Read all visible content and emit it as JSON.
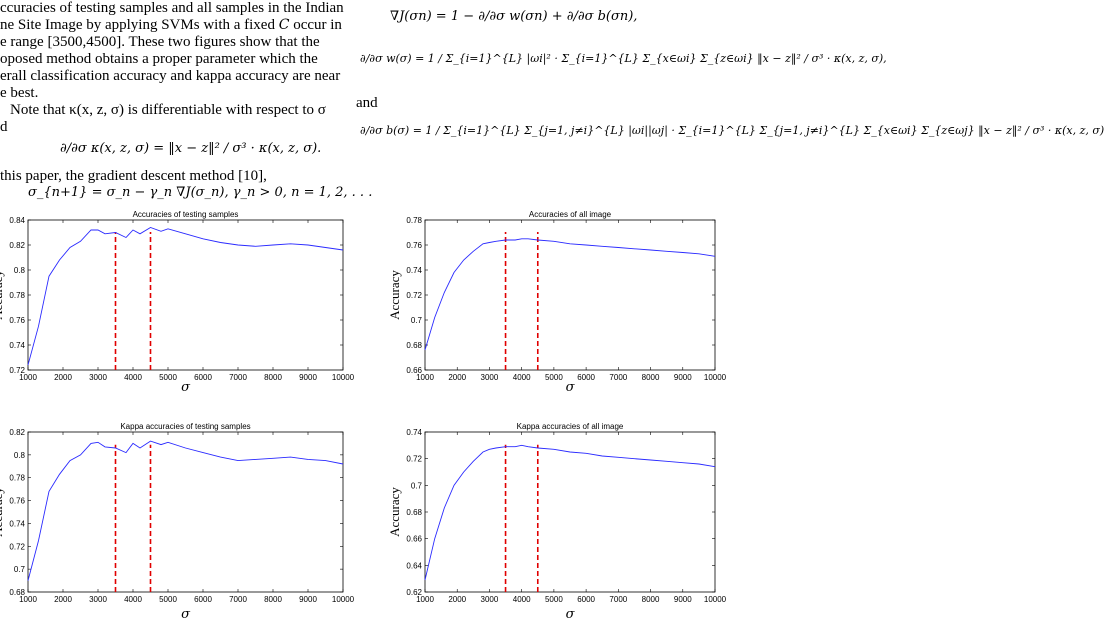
{
  "text": {
    "left_line1": "ccuracies of testing samples and all samples in the Indian",
    "left_line2_pre": "ne Site Image by applying SVMs with a fixed",
    "left_line2_sym": "C",
    "left_line2_post": "occur in",
    "left_line3": "e range [3500,4500]. These two figures show that the",
    "left_line4": "oposed method obtains a proper parameter which the",
    "left_line5": "erall classification accuracy and kappa accuracy are near",
    "left_line6": "e best.",
    "left_line7": "Note that κ(x, z, σ) is differentiable with respect to σ",
    "left_line8": "d",
    "left_eq1": "∂/∂σ κ(x, z, σ) = ‖x − z‖² / σ³ · κ(x, z, σ).",
    "left_line9": "this paper, the gradient descent method [10],",
    "left_eq2": "σ_{n+1} = σ_n − γ_n ∇J(σ_n), γ_n > 0, n = 1, 2, . . .",
    "right_eq1": "∇J(σn) = 1 − ∂/∂σ w(σn) + ∂/∂σ b(σn),",
    "right_eq2": "∂/∂σ w(σ) = 1 / Σ_{i=1}^{L} |ωi|² · Σ_{i=1}^{L} Σ_{x∈ωi} Σ_{z∈ωi} ‖x − z‖² / σ³ · κ(x, z, σ),",
    "right_and": "and",
    "right_eq3": "∂/∂σ b(σ) = 1 / Σ_{i=1}^{L} Σ_{j=1, j≠i}^{L} |ωi||ωj| · Σ_{i=1}^{L} Σ_{j=1, j≠i}^{L} Σ_{x∈ωi} Σ_{z∈ωj} ‖x − z‖² / σ³ · κ(x, z, σ)"
  },
  "chart_data": [
    {
      "type": "line",
      "title": "Accuracies of testing samples",
      "xlabel": "σ",
      "ylabel": "Accuracy",
      "xlim": [
        1000,
        10000
      ],
      "ylim": [
        0.72,
        0.84
      ],
      "xticks": [
        1000,
        2000,
        3000,
        4000,
        5000,
        6000,
        7000,
        8000,
        9000,
        10000
      ],
      "yticks": [
        0.72,
        0.74,
        0.76,
        0.78,
        0.8,
        0.82,
        0.84
      ],
      "ytick_labels": [
        "0.72",
        "0.74",
        "0.76",
        "0.78",
        "0.8",
        "0.82",
        "0.84"
      ],
      "series_color": "#2a2aff",
      "marker_color": "#e00000",
      "markers": [
        3500,
        4500
      ],
      "x": [
        1000,
        1300,
        1600,
        1900,
        2200,
        2500,
        2800,
        3000,
        3200,
        3500,
        3800,
        4000,
        4200,
        4500,
        4800,
        5000,
        5500,
        6000,
        6500,
        7000,
        7500,
        8000,
        8500,
        9000,
        9500,
        10000
      ],
      "y": [
        0.724,
        0.755,
        0.795,
        0.808,
        0.818,
        0.823,
        0.832,
        0.832,
        0.829,
        0.83,
        0.826,
        0.832,
        0.829,
        0.834,
        0.831,
        0.833,
        0.829,
        0.825,
        0.822,
        0.82,
        0.819,
        0.82,
        0.821,
        0.82,
        0.818,
        0.816
      ]
    },
    {
      "type": "line",
      "title": "Accuracies of all image",
      "xlabel": "σ",
      "ylabel": "Accuracy",
      "xlim": [
        1000,
        10000
      ],
      "ylim": [
        0.66,
        0.78
      ],
      "xticks": [
        1000,
        2000,
        3000,
        4000,
        5000,
        6000,
        7000,
        8000,
        9000,
        10000
      ],
      "yticks": [
        0.66,
        0.68,
        0.7,
        0.72,
        0.74,
        0.76,
        0.78
      ],
      "ytick_labels": [
        "0.66",
        "0.68",
        "0.7",
        "0.72",
        "0.74",
        "0.76",
        "0.78"
      ],
      "series_color": "#2a2aff",
      "marker_color": "#e00000",
      "markers": [
        3500,
        4500
      ],
      "x": [
        1000,
        1300,
        1600,
        1900,
        2200,
        2500,
        2800,
        3000,
        3200,
        3500,
        3800,
        4000,
        4200,
        4500,
        5000,
        5500,
        6000,
        6500,
        7000,
        7500,
        8000,
        8500,
        9000,
        9500,
        10000
      ],
      "y": [
        0.676,
        0.702,
        0.722,
        0.738,
        0.748,
        0.755,
        0.761,
        0.762,
        0.763,
        0.764,
        0.764,
        0.765,
        0.765,
        0.764,
        0.763,
        0.761,
        0.76,
        0.759,
        0.758,
        0.757,
        0.756,
        0.755,
        0.754,
        0.753,
        0.751
      ]
    },
    {
      "type": "line",
      "title": "Kappa accuracies of testing samples",
      "xlabel": "σ",
      "ylabel": "Accuracy",
      "xlim": [
        1000,
        10000
      ],
      "ylim": [
        0.68,
        0.82
      ],
      "xticks": [
        1000,
        2000,
        3000,
        4000,
        5000,
        6000,
        7000,
        8000,
        9000,
        10000
      ],
      "yticks": [
        0.68,
        0.7,
        0.72,
        0.74,
        0.76,
        0.78,
        0.8,
        0.82
      ],
      "ytick_labels": [
        "0.68",
        "0.7",
        "0.72",
        "0.74",
        "0.76",
        "0.78",
        "0.8",
        "0.82"
      ],
      "series_color": "#2a2aff",
      "marker_color": "#e00000",
      "markers": [
        3500,
        4500
      ],
      "x": [
        1000,
        1300,
        1600,
        1900,
        2200,
        2500,
        2800,
        3000,
        3200,
        3500,
        3800,
        4000,
        4200,
        4500,
        4800,
        5000,
        5500,
        6000,
        6500,
        7000,
        7500,
        8000,
        8500,
        9000,
        9500,
        10000
      ],
      "y": [
        0.69,
        0.725,
        0.768,
        0.783,
        0.795,
        0.8,
        0.81,
        0.811,
        0.807,
        0.806,
        0.802,
        0.81,
        0.806,
        0.812,
        0.809,
        0.811,
        0.806,
        0.802,
        0.798,
        0.795,
        0.796,
        0.797,
        0.798,
        0.796,
        0.795,
        0.792
      ]
    },
    {
      "type": "line",
      "title": "Kappa accuracies of all image",
      "xlabel": "σ",
      "ylabel": "Accuracy",
      "xlim": [
        1000,
        10000
      ],
      "ylim": [
        0.62,
        0.74
      ],
      "xticks": [
        1000,
        2000,
        3000,
        4000,
        5000,
        6000,
        7000,
        8000,
        9000,
        10000
      ],
      "yticks": [
        0.62,
        0.64,
        0.66,
        0.68,
        0.7,
        0.72,
        0.74
      ],
      "ytick_labels": [
        "0.62",
        "0.64",
        "0.66",
        "0.68",
        "0.7",
        "0.72",
        "0.74"
      ],
      "series_color": "#2a2aff",
      "marker_color": "#e00000",
      "markers": [
        3500,
        4500
      ],
      "x": [
        1000,
        1300,
        1600,
        1900,
        2200,
        2500,
        2800,
        3000,
        3200,
        3500,
        3800,
        4000,
        4200,
        4500,
        5000,
        5500,
        6000,
        6500,
        7000,
        7500,
        8000,
        8500,
        9000,
        9500,
        10000
      ],
      "y": [
        0.629,
        0.66,
        0.683,
        0.7,
        0.71,
        0.718,
        0.725,
        0.727,
        0.728,
        0.729,
        0.729,
        0.73,
        0.729,
        0.728,
        0.727,
        0.725,
        0.724,
        0.722,
        0.721,
        0.72,
        0.719,
        0.718,
        0.717,
        0.716,
        0.714
      ]
    }
  ]
}
